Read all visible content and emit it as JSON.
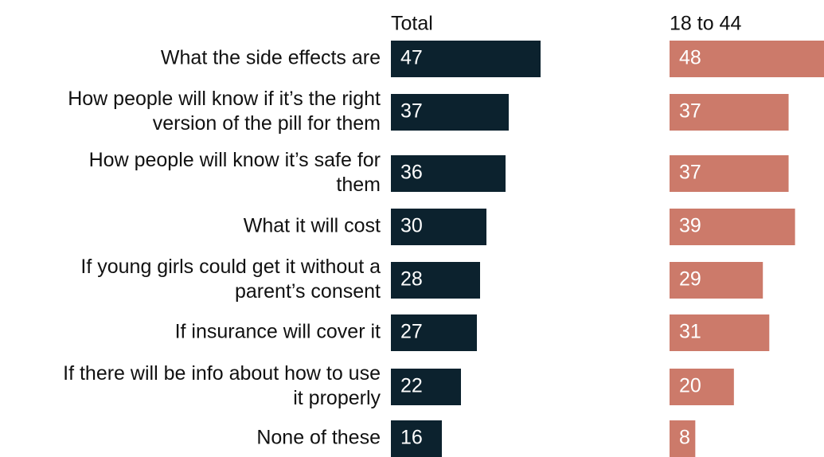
{
  "chart_data": {
    "type": "bar",
    "orientation": "horizontal",
    "categories": [
      [
        "What the side effects are"
      ],
      [
        "How people will know if it’s the right",
        "version of the pill for them"
      ],
      [
        "How people will know it’s safe for",
        "them"
      ],
      [
        "What it will cost"
      ],
      [
        "If young girls could get it without a",
        "parent’s consent"
      ],
      [
        "If insurance will cover it"
      ],
      [
        "If there will be info about how to use",
        "it properly"
      ],
      [
        "None of these"
      ]
    ],
    "series": [
      {
        "name": "Total",
        "color": "#0c222e",
        "values": [
          47,
          37,
          36,
          30,
          28,
          27,
          22,
          16
        ]
      },
      {
        "name": "18 to 44",
        "color": "#cc7a6a",
        "values": [
          48,
          37,
          37,
          39,
          29,
          31,
          20,
          8
        ]
      }
    ],
    "xlim": [
      0,
      48
    ],
    "grid": false,
    "legend": "none"
  }
}
